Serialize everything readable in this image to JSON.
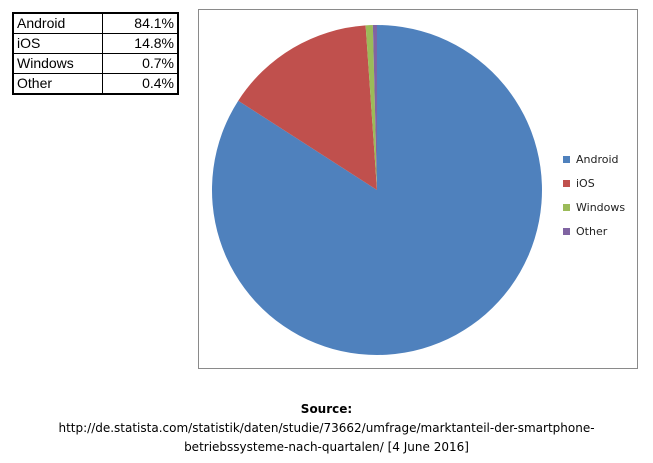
{
  "table": {
    "rows": [
      {
        "label": "Android",
        "value": "84.1%"
      },
      {
        "label": "iOS",
        "value": "14.8%"
      },
      {
        "label": "Windows",
        "value": "0.7%"
      },
      {
        "label": "Other",
        "value": "0.4%"
      }
    ]
  },
  "chart_data": {
    "type": "pie",
    "categories": [
      "Android",
      "iOS",
      "Windows",
      "Other"
    ],
    "values": [
      84.1,
      14.8,
      0.7,
      0.4
    ],
    "colors": [
      "#4f81bd",
      "#c0504d",
      "#9bbb59",
      "#8064a2"
    ],
    "legend_position": "right",
    "start_angle": "12 o'clock, clockwise"
  },
  "source": {
    "label": "Source:",
    "line1": "http://de.statista.com/statistik/daten/studie/73662/umfrage/marktanteil-der-smartphone-",
    "line2": "betriebssysteme-nach-quartalen/ [4 June 2016]"
  }
}
